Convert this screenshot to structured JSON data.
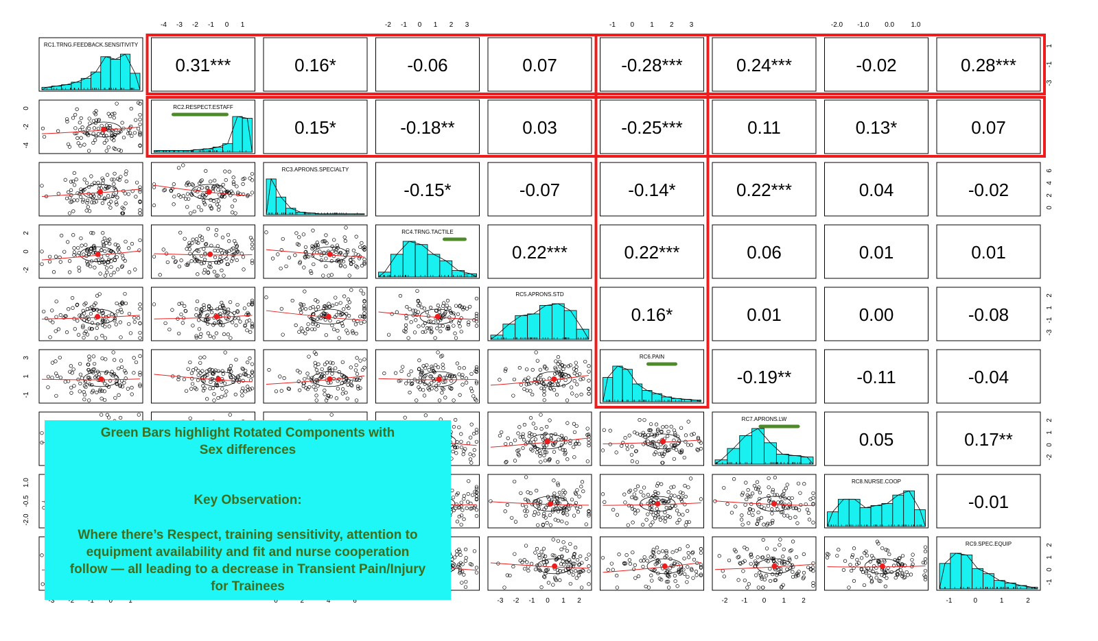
{
  "chart_data": {
    "type": "scatter-matrix",
    "variables": [
      "RC1.TRNG.FEEDBACK.SENSITIVITY",
      "RC2.RESPECT.ESTAFF",
      "RC3.APRONS.SPECIALTY",
      "RC4.TRNG.TACTILE",
      "RC5.APRONS.STD",
      "RC6.PAIN",
      "RC7.APRONS.LW",
      "RC8.NURSE.COOP",
      "RC9.SPEC.EQUIP"
    ],
    "correlations": [
      [
        "",
        "0.31***",
        "0.16*",
        "-0.06",
        "0.07",
        "-0.28***",
        "0.24***",
        "-0.02",
        "0.28***"
      ],
      [
        "",
        "",
        "0.15*",
        "-0.18**",
        "0.03",
        "-0.25***",
        "0.11",
        "0.13*",
        "0.07"
      ],
      [
        "",
        "",
        "",
        "-0.15*",
        "-0.07",
        "-0.14*",
        "0.22***",
        "0.04",
        "-0.02"
      ],
      [
        "",
        "",
        "",
        "",
        "0.22***",
        "0.22***",
        "0.06",
        "0.01",
        "0.01"
      ],
      [
        "",
        "",
        "",
        "",
        "",
        "0.16*",
        "0.01",
        "0.00",
        "-0.08"
      ],
      [
        "",
        "",
        "",
        "",
        "",
        "",
        "-0.19**",
        "-0.11",
        "-0.04"
      ],
      [
        "",
        "",
        "",
        "",
        "",
        "",
        "",
        "0.05",
        "0.17**"
      ],
      [
        "",
        "",
        "",
        "",
        "",
        "",
        "",
        "",
        "-0.01"
      ],
      [
        "",
        "",
        "",
        "",
        "",
        "",
        "",
        "",
        ""
      ]
    ],
    "sex_difference_components": [
      "RC2.RESPECT.ESTAFF",
      "RC4.TRNG.TACTILE",
      "RC6.PAIN",
      "RC7.APRONS.LW"
    ],
    "histograms": [
      [
        2,
        3,
        4,
        6,
        9,
        14,
        26,
        24,
        28,
        13
      ],
      [
        2,
        2,
        2,
        2,
        3,
        4,
        6,
        10,
        42,
        40
      ],
      [
        45,
        22,
        8,
        3,
        2,
        1,
        1,
        1,
        1,
        1
      ],
      [
        6,
        28,
        44,
        40,
        28,
        20,
        8,
        4
      ],
      [
        5,
        18,
        28,
        30,
        40,
        42,
        34,
        12
      ],
      [
        30,
        44,
        40,
        22,
        14,
        10,
        6,
        4,
        3,
        2
      ],
      [
        6,
        22,
        40,
        50,
        30,
        14,
        12,
        10
      ],
      [
        14,
        26,
        26,
        18,
        20,
        22,
        30,
        34,
        16
      ],
      [
        30,
        42,
        40,
        24,
        18,
        10,
        7,
        4,
        2
      ]
    ],
    "top_axis_ticks": [
      {
        "panel": 1,
        "ticks": [
          "-4",
          "-3",
          "-2",
          "-1",
          "0",
          "1"
        ]
      },
      {
        "panel": 3,
        "ticks": [
          "-2",
          "-1",
          "0",
          "1",
          "2",
          "3"
        ]
      },
      {
        "panel": 5,
        "ticks": [
          "-1",
          "0",
          "1",
          "2",
          "3"
        ]
      },
      {
        "panel": 7,
        "ticks": [
          "-2.0",
          "-1.0",
          "0.0",
          "1.0"
        ]
      }
    ],
    "bottom_axis_ticks": [
      {
        "panel": 0,
        "ticks": [
          "-3",
          "-2",
          "-1",
          "0",
          "1"
        ]
      },
      {
        "panel": 2,
        "ticks": [
          "0",
          "2",
          "4",
          "6"
        ]
      },
      {
        "panel": 4,
        "ticks": [
          "-3",
          "-2",
          "-1",
          "0",
          "1",
          "2"
        ]
      },
      {
        "panel": 6,
        "ticks": [
          "-2",
          "-1",
          "0",
          "1",
          "2"
        ]
      },
      {
        "panel": 8,
        "ticks": [
          "-1",
          "0",
          "1",
          "2"
        ]
      }
    ],
    "left_axis_ticks": [
      {
        "panel": 1,
        "ticks": [
          "0",
          "-2",
          "-4"
        ]
      },
      {
        "panel": 3,
        "ticks": [
          "2",
          "0",
          "-2"
        ]
      },
      {
        "panel": 5,
        "ticks": [
          "3",
          "1",
          "-1"
        ]
      },
      {
        "panel": 7,
        "ticks": [
          "1.0",
          "-0.5",
          "-2.0"
        ]
      }
    ],
    "right_axis_ticks": [
      {
        "panel": 0,
        "ticks": [
          "1",
          "-1",
          "-3"
        ]
      },
      {
        "panel": 2,
        "ticks": [
          "6",
          "4",
          "2",
          "0"
        ]
      },
      {
        "panel": 4,
        "ticks": [
          "2",
          "1",
          "-1",
          "-3"
        ]
      },
      {
        "panel": 6,
        "ticks": [
          "2",
          "1",
          "0",
          "-2"
        ]
      },
      {
        "panel": 8,
        "ticks": [
          "2",
          "1",
          "0",
          "-1"
        ]
      }
    ]
  },
  "annotation": {
    "line1": "Green Bars highlight Rotated Components with",
    "line2": "Sex differences",
    "heading": "Key Observation:",
    "body1": "Where there’s Respect, training sensitivity, attention to",
    "body2": "equipment availability and fit  and nurse cooperation",
    "body3": "follow — all leading to a decrease in Transient Pain/Injury",
    "body4": "for Trainees"
  },
  "colors": {
    "hist_fill": "#19f0f0",
    "highlight_box": "#ee1c1c",
    "green_bar": "#4f8a2a",
    "loess": "#ee1c1c",
    "annotation_bg": "#1ff7f7",
    "annotation_text": "#3d6e1e"
  }
}
